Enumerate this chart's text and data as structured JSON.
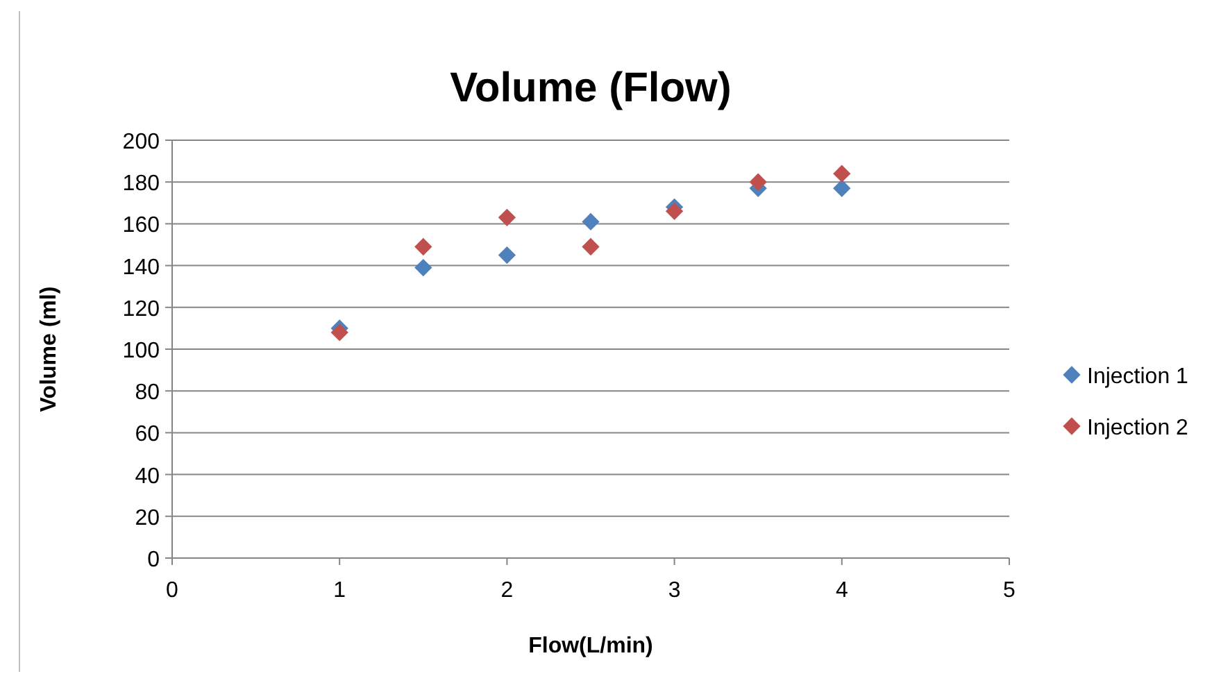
{
  "chart_data": {
    "type": "scatter",
    "title": "Volume (Flow)",
    "xlabel": "Flow(L/min)",
    "ylabel": "Volume (ml)",
    "xlim": [
      0,
      5
    ],
    "xticks": [
      0,
      1,
      2,
      3,
      4,
      5
    ],
    "ylim": [
      0,
      200
    ],
    "yticks": [
      0,
      20,
      40,
      60,
      80,
      100,
      120,
      140,
      160,
      180,
      200
    ],
    "grid": "y",
    "legend": "right",
    "marker": "diamond",
    "series": [
      {
        "name": "Injection 1",
        "color": "#4f81bd",
        "x": [
          1,
          1.5,
          2,
          2.5,
          3,
          3.5,
          4
        ],
        "values": [
          110,
          139,
          145,
          161,
          168,
          177,
          177
        ]
      },
      {
        "name": "Injection 2",
        "color": "#c0504d",
        "x": [
          1,
          1.5,
          2,
          2.5,
          3,
          3.5,
          4
        ],
        "values": [
          108,
          149,
          163,
          149,
          166,
          180,
          184
        ]
      }
    ]
  }
}
